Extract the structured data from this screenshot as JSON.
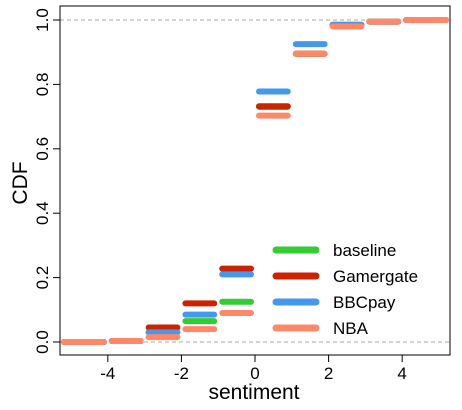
{
  "chart_data": {
    "type": "line",
    "step": true,
    "xlabel": "sentiment",
    "ylabel": "CDF",
    "xlim": [
      -5.3,
      5.3
    ],
    "ylim": [
      0,
      1
    ],
    "x_ticks": [
      -4,
      -2,
      0,
      2,
      4
    ],
    "x_tick_labels": [
      "-4",
      "-2",
      "0",
      "2",
      "4"
    ],
    "y_ticks": [
      0,
      0.2,
      0.4,
      0.6,
      0.8,
      1.0
    ],
    "y_tick_labels": [
      "0.0",
      "0.2",
      "0.4",
      "0.6",
      "0.8",
      "1.0"
    ],
    "reference_lines": [
      0,
      1
    ],
    "grid": false,
    "legend_position": "bottom-right",
    "series": [
      {
        "name": "baseline",
        "color": "#33cc33",
        "steps": [
          [
            -5,
            0
          ],
          [
            -4,
            0.003
          ],
          [
            -3,
            0.03
          ],
          [
            -2,
            0.065
          ],
          [
            -1,
            0.125
          ],
          [
            0,
            0.73
          ],
          [
            1,
            0.895
          ],
          [
            2,
            0.985
          ],
          [
            3,
            0.995
          ],
          [
            4,
            1.0
          ]
        ]
      },
      {
        "name": "Gamergate",
        "color": "#cc2200",
        "steps": [
          [
            -5,
            0
          ],
          [
            -4,
            0.003
          ],
          [
            -3,
            0.045
          ],
          [
            -2,
            0.12
          ],
          [
            -1,
            0.228
          ],
          [
            0,
            0.732
          ],
          [
            1,
            0.895
          ],
          [
            2,
            0.985
          ],
          [
            3,
            0.995
          ],
          [
            4,
            1.0
          ]
        ]
      },
      {
        "name": "BBCpay",
        "color": "#4499ee",
        "steps": [
          [
            -5,
            0
          ],
          [
            -4,
            0.003
          ],
          [
            -3,
            0.03
          ],
          [
            -2,
            0.085
          ],
          [
            -1,
            0.21
          ],
          [
            0,
            0.778
          ],
          [
            1,
            0.925
          ],
          [
            2,
            0.985
          ],
          [
            3,
            0.995
          ],
          [
            4,
            1.0
          ]
        ]
      },
      {
        "name": "NBA",
        "color": "#ff8866",
        "steps": [
          [
            -5,
            0
          ],
          [
            -4,
            0.003
          ],
          [
            -3,
            0.015
          ],
          [
            -2,
            0.04
          ],
          [
            -1,
            0.09
          ],
          [
            0,
            0.703
          ],
          [
            1,
            0.895
          ],
          [
            2,
            0.98
          ],
          [
            3,
            0.995
          ],
          [
            4,
            1.0
          ]
        ]
      }
    ]
  }
}
